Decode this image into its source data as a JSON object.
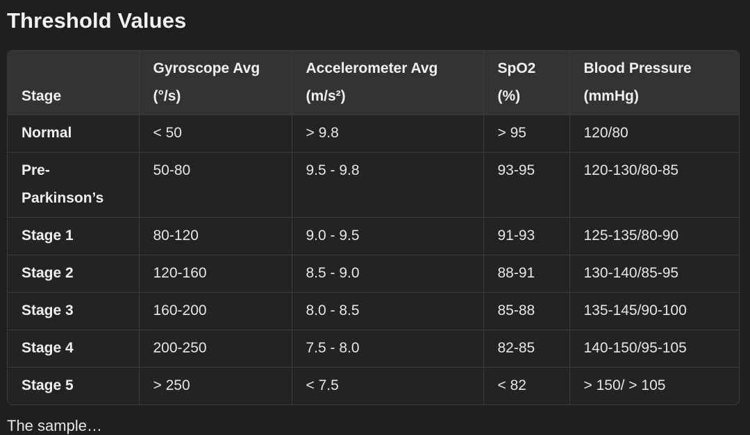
{
  "page": {
    "title": "Threshold Values",
    "footer_text_partial": "The sample…"
  },
  "table": {
    "headers": [
      {
        "line1": "Stage",
        "line2": ""
      },
      {
        "line1": "Gyroscope Avg",
        "line2": "(°/s)"
      },
      {
        "line1": "Accelerometer Avg",
        "line2": "(m/s²)"
      },
      {
        "line1": "SpO2",
        "line2": "(%)"
      },
      {
        "line1": "Blood Pressure",
        "line2": "(mmHg)"
      }
    ],
    "rows": [
      [
        "Normal",
        "< 50",
        "> 9.8",
        "> 95",
        "120/80"
      ],
      [
        "Pre-Parkinson’s",
        "50-80",
        "9.5 - 9.8",
        "93-95",
        "120-130/80-85"
      ],
      [
        "Stage 1",
        "80-120",
        "9.0 - 9.5",
        "91-93",
        "125-135/80-90"
      ],
      [
        "Stage 2",
        "120-160",
        "8.5 - 9.0",
        "88-91",
        "130-140/85-95"
      ],
      [
        "Stage 3",
        "160-200",
        "8.0 - 8.5",
        "85-88",
        "135-145/90-100"
      ],
      [
        "Stage 4",
        "200-250",
        "7.5 - 8.0",
        "82-85",
        "140-150/95-105"
      ],
      [
        "Stage 5",
        "> 250",
        "< 7.5",
        "< 82",
        "> 150/ > 105"
      ]
    ]
  },
  "colors": {
    "background": "#1f1f1f",
    "header_bg": "#333333",
    "row_bg": "#232323",
    "border": "#3c3c3c",
    "text": "#e8e8e8"
  }
}
